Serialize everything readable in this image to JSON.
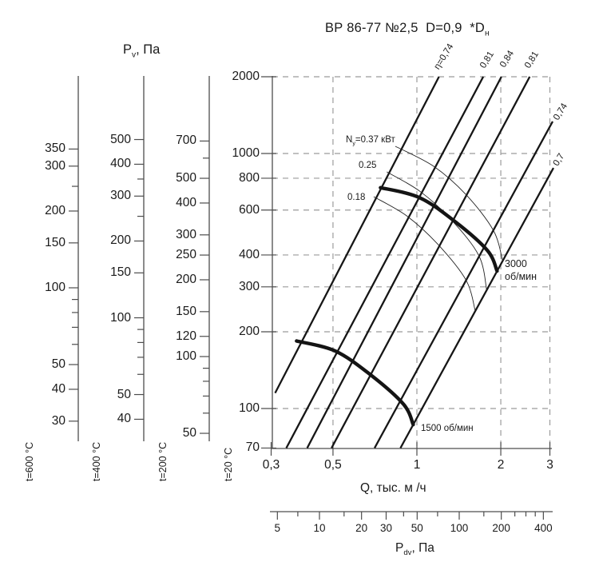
{
  "title": {
    "base": "ВР 86-77 №2,5  D=0,9  *D",
    "sub": "н"
  },
  "pv_axis_title": {
    "base": "P",
    "sub": "v",
    "suffix": ", Па"
  },
  "q_axis": {
    "title": "Q, тыс. м /ч",
    "tick_values": [
      0.3,
      0.5,
      1,
      2,
      3
    ],
    "tick_labels": [
      "0,3",
      "0,5",
      "1",
      "2",
      "3"
    ]
  },
  "pdv_axis": {
    "title_base": "P",
    "title_sub": "dv",
    "title_suffix": ", Па",
    "tick_values": [
      5,
      10,
      20,
      30,
      50,
      100,
      200,
      400
    ],
    "minor_ticks": [
      7,
      15,
      40,
      70,
      150,
      250,
      300,
      350
    ]
  },
  "pressure_scales": [
    {
      "name": "t=600 °C",
      "x": 98,
      "y_of_100": 360,
      "main": false,
      "ticks": [
        350,
        300,
        200,
        150,
        100,
        50,
        40,
        30
      ],
      "minor_ticks": [
        250,
        90,
        80,
        70,
        60
      ]
    },
    {
      "name": "t=400 °C",
      "x": 180,
      "y_of_100": 397.5,
      "main": false,
      "ticks": [
        500,
        400,
        300,
        200,
        150,
        100,
        50,
        40
      ],
      "minor_ticks": [
        350,
        250,
        90,
        80,
        70,
        60
      ]
    },
    {
      "name": "t=200 °C",
      "x": 262,
      "y_of_100": 446,
      "main": false,
      "ticks": [
        700,
        500,
        400,
        300,
        250,
        200,
        150,
        120,
        100,
        50
      ],
      "minor_ticks": [
        600,
        90,
        80,
        70,
        60
      ]
    },
    {
      "name": "t=20 °C",
      "x": 341,
      "y_of_100": 511,
      "main": true,
      "ticks": [
        2000,
        1000,
        800,
        600,
        400,
        300,
        200,
        100,
        70
      ],
      "minor_ticks": []
    }
  ],
  "chart_data": {
    "type": "line",
    "title": "ВР 86-77 №2,5 D=0,9 *Dн",
    "xlabel": "Q, тыс. м/ч",
    "ylabel": "Pv, Па (шкала t=20 °C)",
    "x_scale": "log",
    "y_scale": "log",
    "xlim": [
      0.3,
      3
    ],
    "ylim": [
      70,
      2000
    ],
    "grid_x": [
      0.5,
      1,
      2,
      3
    ],
    "grid_y": [
      2000,
      1000,
      800,
      600,
      400,
      300,
      200,
      100
    ],
    "efficiency_lines": [
      {
        "eta": 0.74,
        "label": "η=0,74",
        "points": [
          [
            0.31,
            115
          ],
          [
            1.2,
            2000
          ]
        ]
      },
      {
        "eta": 0.81,
        "label": "0,81",
        "points": [
          [
            0.34,
            70
          ],
          [
            1.73,
            2000
          ]
        ]
      },
      {
        "eta": 0.84,
        "label": "0,84",
        "points": [
          [
            0.404,
            70
          ],
          [
            2.01,
            2000
          ]
        ]
      },
      {
        "eta": 0.81,
        "label": "0,81",
        "points": [
          [
            0.494,
            70
          ],
          [
            2.54,
            2000
          ]
        ]
      },
      {
        "eta": 0.74,
        "label": "0,74",
        "points": [
          [
            0.705,
            70
          ],
          [
            3.07,
            1335
          ]
        ]
      },
      {
        "eta": 0.7,
        "label": "0,7",
        "points": [
          [
            0.873,
            70
          ],
          [
            3.09,
            878
          ]
        ]
      }
    ],
    "power_curves": [
      {
        "label": "Nу=0.37 кВт",
        "label_prefix": "N",
        "label_sub": "у",
        "label_suffix": "=0.37 кВт",
        "power_kw": 0.37,
        "points": [
          [
            0.837,
            1067
          ],
          [
            1.15,
            890
          ],
          [
            1.5,
            690
          ],
          [
            1.88,
            500
          ],
          [
            2.03,
            380
          ]
        ]
      },
      {
        "label": "0.25",
        "power_kw": 0.25,
        "points": [
          [
            0.78,
            847
          ],
          [
            1.03,
            708
          ],
          [
            1.33,
            549
          ],
          [
            1.67,
            397
          ],
          [
            1.78,
            291
          ]
        ]
      },
      {
        "label": "0.18",
        "power_kw": 0.18,
        "points": [
          [
            0.7,
            677
          ],
          [
            0.92,
            569
          ],
          [
            1.19,
            440
          ],
          [
            1.5,
            319
          ],
          [
            1.62,
            241
          ]
        ]
      }
    ],
    "speed_curves": [
      {
        "rpm": 3000,
        "label": "3000\nоб/мин",
        "points": [
          [
            0.74,
            735
          ],
          [
            1.02,
            672
          ],
          [
            1.37,
            541
          ],
          [
            1.79,
            417
          ],
          [
            1.94,
            346
          ]
        ]
      },
      {
        "rpm": 1500,
        "label": "1500 об/мин",
        "points": [
          [
            0.37,
            184
          ],
          [
            0.51,
            168
          ],
          [
            0.685,
            135
          ],
          [
            0.895,
            104
          ],
          [
            0.97,
            86.5
          ]
        ]
      }
    ]
  }
}
